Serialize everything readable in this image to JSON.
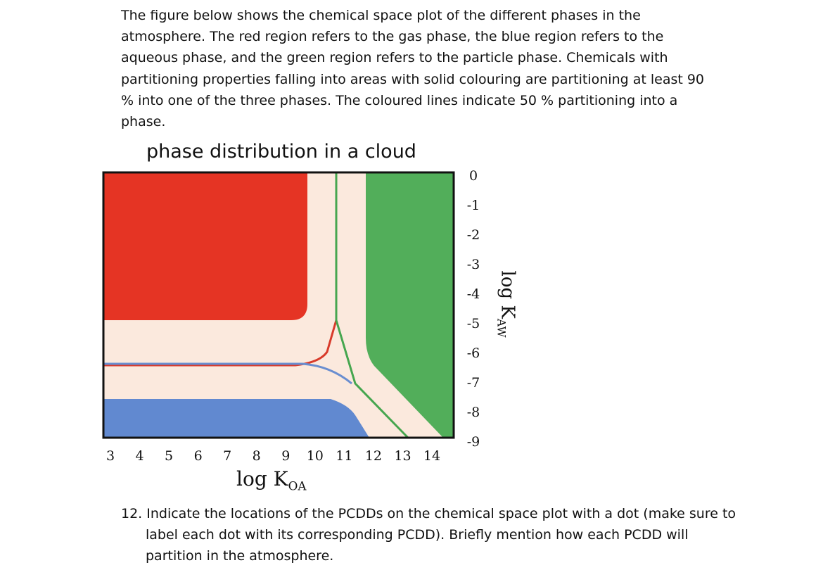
{
  "intro": {
    "lines": [
      "The figure below shows the chemical space plot of the different phases in the",
      "atmosphere. The red region refers to the gas phase, the blue region refers to the",
      "aqueous phase, and the green region refers to the particle phase. Chemicals with",
      "partitioning properties falling into areas with solid colouring are partitioning at least 90",
      "% into one of the three phases. The coloured lines indicate 50 % partitioning into a",
      "phase."
    ]
  },
  "figure": {
    "title": "phase distribution in a cloud",
    "x_ticks": [
      "3",
      "4",
      "5",
      "6",
      "7",
      "8",
      "9",
      "10",
      "11",
      "12",
      "13",
      "14"
    ],
    "y_ticks": [
      "0",
      "-1",
      "-2",
      "-3",
      "-4",
      "-5",
      "-6",
      "-7",
      "-8",
      "-9"
    ],
    "x_label": {
      "main": "log K",
      "sub": "OA"
    },
    "y_label": {
      "main": "log K",
      "sub": "AW"
    }
  },
  "question": {
    "lines": [
      "12. Indicate the locations of the PCDDs on the chemical space plot with a dot (make sure to",
      "label each dot with its corresponding PCDD). Briefly mention how each PCDD will",
      "partition in the atmosphere."
    ]
  }
}
